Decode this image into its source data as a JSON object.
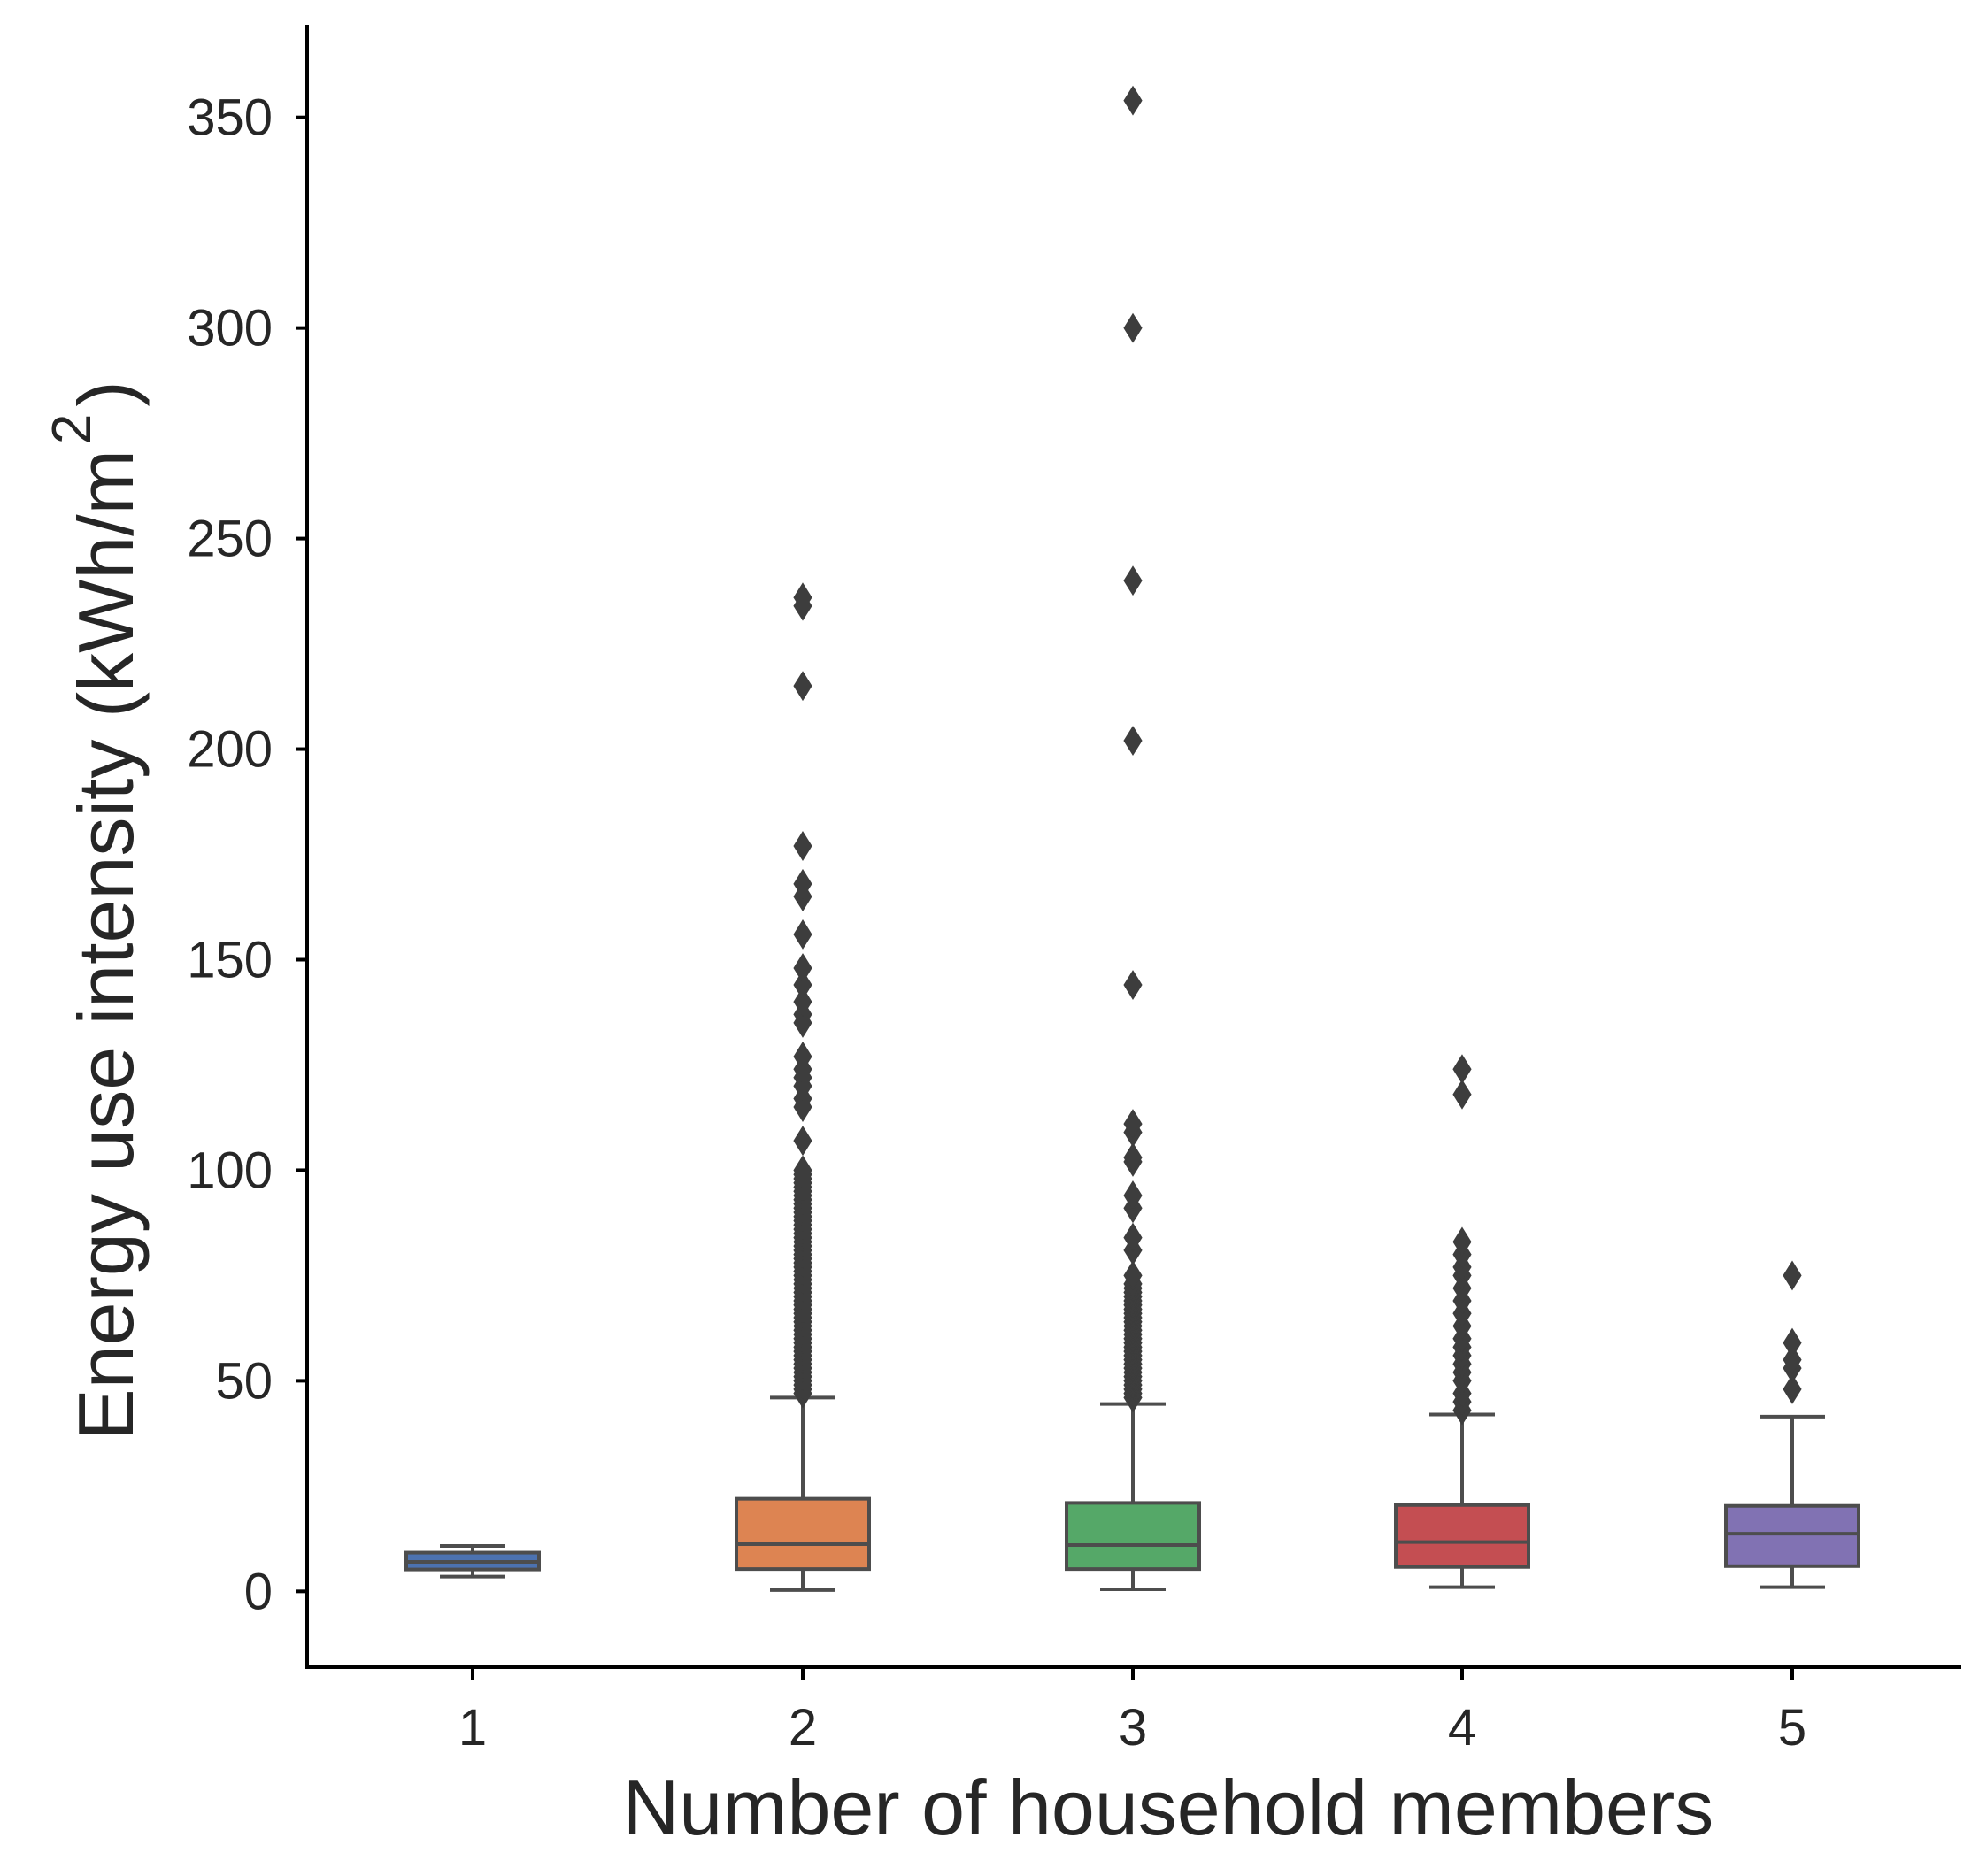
{
  "chart_data": {
    "type": "box",
    "xlabel": "Number of household members",
    "ylabel": {
      "main": "Energy use intensity (kWh/m",
      "sup": "2",
      "close": ")"
    },
    "ylim": [
      -18,
      372
    ],
    "yticks": [
      0,
      50,
      100,
      150,
      200,
      250,
      300,
      350
    ],
    "categories": [
      "1",
      "2",
      "3",
      "4",
      "5"
    ],
    "grid": false,
    "series": [
      {
        "category": "1",
        "color": "#4c72b0",
        "whisker_low": 3.5,
        "q1": 5.2,
        "median": 7.0,
        "q3": 9.2,
        "whisker_high": 10.8,
        "outliers": []
      },
      {
        "category": "2",
        "color": "#dd8452",
        "whisker_low": 0.3,
        "q1": 5.3,
        "median": 11.2,
        "q3": 22.0,
        "whisker_high": 46.0,
        "outliers": [
          47,
          48,
          49,
          50,
          51,
          52,
          53,
          54,
          55,
          56,
          57,
          58,
          59,
          60,
          61,
          62,
          63,
          64,
          65,
          66,
          67,
          68,
          69,
          70,
          71,
          72,
          73,
          74,
          75,
          76,
          77,
          78,
          79,
          80,
          81,
          82,
          83,
          84,
          85,
          86,
          87,
          88,
          89,
          90,
          91,
          92,
          93,
          94,
          95,
          96,
          97,
          98,
          99,
          100,
          107,
          115,
          117,
          120,
          122,
          124,
          127,
          135,
          137,
          140,
          144,
          148,
          156,
          165,
          168,
          177,
          215,
          234,
          236
        ]
      },
      {
        "category": "3",
        "color": "#55a868",
        "whisker_low": 0.5,
        "q1": 5.3,
        "median": 11.0,
        "q3": 21.0,
        "whisker_high": 44.5,
        "outliers": [
          46,
          47,
          48,
          49,
          50,
          51,
          52,
          53,
          54,
          55,
          56,
          57,
          58,
          59,
          60,
          61,
          62,
          63,
          64,
          65,
          66,
          67,
          68,
          69,
          70,
          71,
          72,
          73,
          75,
          81,
          84,
          91,
          94,
          102,
          103,
          109,
          111,
          144,
          202,
          240,
          300,
          354
        ]
      },
      {
        "category": "4",
        "color": "#c44e52",
        "whisker_low": 1.0,
        "q1": 5.8,
        "median": 11.7,
        "q3": 20.5,
        "whisker_high": 42.0,
        "outliers": [
          43,
          45,
          47,
          50,
          52,
          54,
          56,
          58,
          60,
          63,
          66,
          69,
          72,
          75,
          77,
          80,
          83,
          118,
          124
        ]
      },
      {
        "category": "5",
        "color": "#8172b3",
        "whisker_low": 1.0,
        "q1": 6.0,
        "median": 13.7,
        "q3": 20.3,
        "whisker_high": 41.5,
        "outliers": [
          48,
          53,
          55,
          59,
          75
        ]
      }
    ]
  }
}
